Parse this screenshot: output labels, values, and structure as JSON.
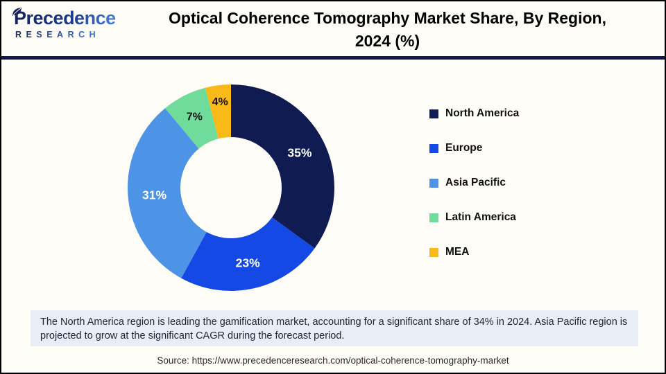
{
  "header": {
    "logo": {
      "line1": "Precedence",
      "line2": "RESEARCH",
      "icon": "leaf-icon"
    },
    "title_lines": [
      "Optical Coherence Tomography Market Share, By Region,",
      "2024 (%)"
    ],
    "title_full": "Optical Coherence Tomography Market Share, By Region, 2024 (%)"
  },
  "chart_data": {
    "type": "pie",
    "subtype": "donut",
    "title": "Optical Coherence Tomography Market Share, By Region, 2024 (%)",
    "categories": [
      "North America",
      "Europe",
      "Asia Pacific",
      "Latin America",
      "MEA"
    ],
    "values": [
      35,
      23,
      31,
      7,
      4
    ],
    "unit": "%",
    "colors": [
      "#101b52",
      "#1549e6",
      "#4d93e6",
      "#6fdc9c",
      "#f9b917"
    ],
    "label_colors": [
      "#ffffff",
      "#ffffff",
      "#ffffff",
      "#111111",
      "#111111"
    ],
    "start_angle_deg": 0,
    "direction": "clockwise",
    "legend_position": "right",
    "grid": false
  },
  "note": {
    "text": "The North America region is leading the gamification market, accounting for a significant share of 34% in 2024. Asia Pacific region is projected to grow at the significant CAGR during the forecast period."
  },
  "source": {
    "text": "Source: https://www.precedenceresearch.com/optical-coherence-tomography-market"
  },
  "style": {
    "accent_navy": "#131a4f",
    "note_bg": "#e8edf6",
    "page_bg": "#fffdf8",
    "border_color": "#000000"
  }
}
